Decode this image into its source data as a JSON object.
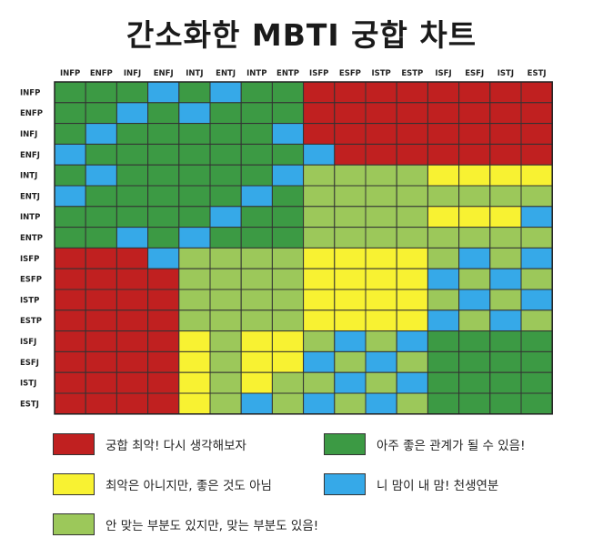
{
  "title": "간소화한 MBTI 궁합 차트",
  "colors": {
    "red": "#c02020",
    "green": "#3c9a44",
    "yellow": "#f8f232",
    "blue": "#36a9e8",
    "lightgreen": "#9cc85a"
  },
  "legend": [
    {
      "key": "R",
      "color": "#c02020",
      "text": "궁합 최악! 다시 생각해보자"
    },
    {
      "key": "G",
      "color": "#3c9a44",
      "text": "아주 좋은 관계가 될 수 있음!"
    },
    {
      "key": "Y",
      "color": "#f8f232",
      "text": "최악은 아니지만, 좋은 것도 아님"
    },
    {
      "key": "B",
      "color": "#36a9e8",
      "text": "니 맘이 내 맘! 천생연분"
    },
    {
      "key": "L",
      "color": "#9cc85a",
      "text": "안 맞는 부분도 있지만, 맞는 부분도 있음!"
    }
  ],
  "chart_data": {
    "type": "heatmap",
    "x_labels": [
      "INFP",
      "ENFP",
      "INFJ",
      "ENFJ",
      "INTJ",
      "ENTJ",
      "INTP",
      "ENTP",
      "ISFP",
      "ESFP",
      "ISTP",
      "ESTP",
      "ISFJ",
      "ESFJ",
      "ISTJ",
      "ESTJ"
    ],
    "y_labels": [
      "INFP",
      "ENFP",
      "INFJ",
      "ENFJ",
      "INTJ",
      "ENTJ",
      "INTP",
      "ENTP",
      "ISFP",
      "ESFP",
      "ISTP",
      "ESTP",
      "ISFJ",
      "ESFJ",
      "ISTJ",
      "ESTJ"
    ],
    "grid": [
      [
        "G",
        "G",
        "G",
        "B",
        "G",
        "B",
        "G",
        "G",
        "R",
        "R",
        "R",
        "R",
        "R",
        "R",
        "R",
        "R"
      ],
      [
        "G",
        "G",
        "B",
        "G",
        "B",
        "G",
        "G",
        "G",
        "R",
        "R",
        "R",
        "R",
        "R",
        "R",
        "R",
        "R"
      ],
      [
        "G",
        "B",
        "G",
        "G",
        "G",
        "G",
        "G",
        "B",
        "R",
        "R",
        "R",
        "R",
        "R",
        "R",
        "R",
        "R"
      ],
      [
        "B",
        "G",
        "G",
        "G",
        "G",
        "G",
        "G",
        "G",
        "B",
        "R",
        "R",
        "R",
        "R",
        "R",
        "R",
        "R"
      ],
      [
        "G",
        "B",
        "G",
        "G",
        "G",
        "G",
        "G",
        "B",
        "L",
        "L",
        "L",
        "L",
        "Y",
        "Y",
        "Y",
        "Y"
      ],
      [
        "B",
        "G",
        "G",
        "G",
        "G",
        "G",
        "B",
        "G",
        "L",
        "L",
        "L",
        "L",
        "L",
        "L",
        "L",
        "L"
      ],
      [
        "G",
        "G",
        "G",
        "G",
        "G",
        "B",
        "G",
        "G",
        "L",
        "L",
        "L",
        "L",
        "Y",
        "Y",
        "Y",
        "B"
      ],
      [
        "G",
        "G",
        "B",
        "G",
        "B",
        "G",
        "G",
        "G",
        "L",
        "L",
        "L",
        "L",
        "L",
        "L",
        "L",
        "L"
      ],
      [
        "R",
        "R",
        "R",
        "B",
        "L",
        "L",
        "L",
        "L",
        "Y",
        "Y",
        "Y",
        "Y",
        "L",
        "B",
        "L",
        "B"
      ],
      [
        "R",
        "R",
        "R",
        "R",
        "L",
        "L",
        "L",
        "L",
        "Y",
        "Y",
        "Y",
        "Y",
        "B",
        "L",
        "B",
        "L"
      ],
      [
        "R",
        "R",
        "R",
        "R",
        "L",
        "L",
        "L",
        "L",
        "Y",
        "Y",
        "Y",
        "Y",
        "L",
        "B",
        "L",
        "B"
      ],
      [
        "R",
        "R",
        "R",
        "R",
        "L",
        "L",
        "L",
        "L",
        "Y",
        "Y",
        "Y",
        "Y",
        "B",
        "L",
        "B",
        "L"
      ],
      [
        "R",
        "R",
        "R",
        "R",
        "Y",
        "L",
        "Y",
        "Y",
        "L",
        "B",
        "L",
        "B",
        "G",
        "G",
        "G",
        "G"
      ],
      [
        "R",
        "R",
        "R",
        "R",
        "Y",
        "L",
        "Y",
        "Y",
        "B",
        "L",
        "B",
        "L",
        "G",
        "G",
        "G",
        "G"
      ],
      [
        "R",
        "R",
        "R",
        "R",
        "Y",
        "L",
        "Y",
        "L",
        "L",
        "B",
        "L",
        "B",
        "G",
        "G",
        "G",
        "G"
      ],
      [
        "R",
        "R",
        "R",
        "R",
        "Y",
        "L",
        "B",
        "L",
        "B",
        "L",
        "B",
        "L",
        "G",
        "G",
        "G",
        "G"
      ]
    ],
    "legend_placement": "bottom"
  }
}
